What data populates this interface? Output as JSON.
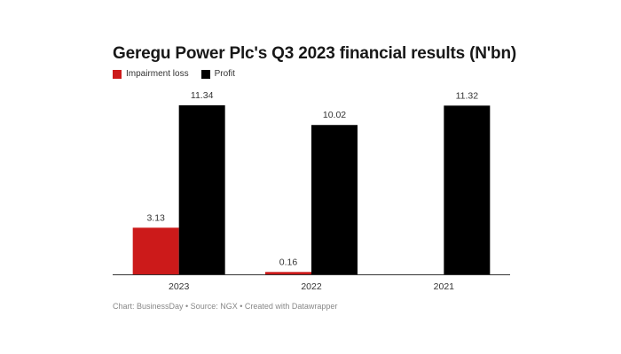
{
  "chart_data": {
    "type": "bar",
    "title": "Geregu Power Plc's Q3 2023 financial results (N'bn)",
    "categories": [
      "2023",
      "2022",
      "2021"
    ],
    "series": [
      {
        "name": "Impairment loss",
        "color": "#cc1a1a",
        "values": [
          3.13,
          0.16,
          null
        ],
        "labels": [
          "3.13",
          "0.16",
          ""
        ]
      },
      {
        "name": "Profit",
        "color": "#000000",
        "values": [
          11.34,
          10.02,
          11.32
        ],
        "labels": [
          "11.34",
          "10.02",
          "11.32"
        ]
      }
    ],
    "ylim": [
      0,
      11.34
    ],
    "grid": false,
    "legend_placement": "top-left"
  },
  "footer": "Chart: BusinessDay • Source: NGX • Created with Datawrapper"
}
